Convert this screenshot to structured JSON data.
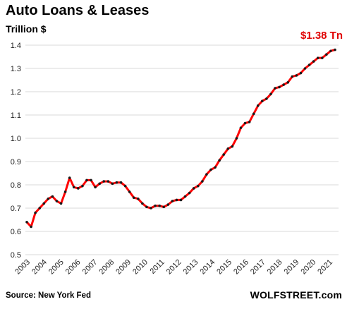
{
  "header": {
    "title": "Auto Loans & Leases",
    "unit_label": "Trillion $",
    "callout": "$1.38 Tn"
  },
  "footer": {
    "source": "Source: New York Fed",
    "brand": "WOLFSTREET.com"
  },
  "colors": {
    "line": "#ff0000",
    "marker": "#1a1a1a",
    "grid": "#d9d9d9",
    "callout": "#e00000"
  },
  "chart_data": {
    "type": "line",
    "title": "Auto Loans & Leases",
    "ylabel": "Trillion $",
    "xlabel": "",
    "grid": true,
    "ylim": [
      0.5,
      1.4
    ],
    "yticks": [
      "0.5",
      "0.6",
      "0.7",
      "0.8",
      "0.9",
      "1.0",
      "1.1",
      "1.2",
      "1.3",
      "1.4"
    ],
    "xticks": [
      "2003",
      "2004",
      "2005",
      "2006",
      "2007",
      "2008",
      "2009",
      "2010",
      "2011",
      "2012",
      "2013",
      "2014",
      "2015",
      "2016",
      "2017",
      "2018",
      "2019",
      "2020",
      "2021"
    ],
    "series": [
      {
        "values": [
          0.64,
          0.62,
          0.68,
          0.7,
          0.72,
          0.74,
          0.75,
          0.73,
          0.72,
          0.77,
          0.83,
          0.79,
          0.785,
          0.795,
          0.82,
          0.82,
          0.79,
          0.805,
          0.815,
          0.815,
          0.805,
          0.81,
          0.81,
          0.795,
          0.77,
          0.745,
          0.74,
          0.72,
          0.705,
          0.7,
          0.71,
          0.71,
          0.705,
          0.715,
          0.73,
          0.735,
          0.735,
          0.75,
          0.765,
          0.785,
          0.795,
          0.815,
          0.845,
          0.865,
          0.875,
          0.905,
          0.93,
          0.955,
          0.965,
          1.0,
          1.045,
          1.065,
          1.07,
          1.105,
          1.14,
          1.16,
          1.17,
          1.19,
          1.215,
          1.22,
          1.23,
          1.24,
          1.265,
          1.27,
          1.28,
          1.3,
          1.315,
          1.33,
          1.345,
          1.345,
          1.36,
          1.375,
          1.38
        ]
      }
    ]
  }
}
